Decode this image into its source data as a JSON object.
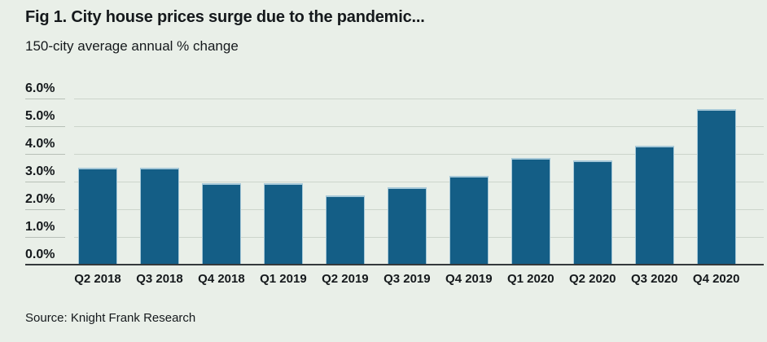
{
  "header": {
    "title": "Fig 1. City house prices surge due to the pandemic...",
    "subtitle": "150-city average annual % change"
  },
  "source_note": "Source: Knight Frank Research",
  "colors": {
    "background": "#e9efe8",
    "bar": "#145e86",
    "bar_edge": "#a6c8d8",
    "gridline": "#ccd4cb",
    "tick_underline": "#b7bfb7",
    "baseline": "#34393c",
    "text": "#15191c"
  },
  "chart_data": {
    "type": "bar",
    "title": "Fig 1. City house prices surge due to the pandemic...",
    "subtitle": "150-city average annual % change",
    "categories": [
      "Q2 2018",
      "Q3 2018",
      "Q4 2018",
      "Q1 2019",
      "Q2 2019",
      "Q3 2019",
      "Q4 2019",
      "Q1 2020",
      "Q2 2020",
      "Q3 2020",
      "Q4 2020"
    ],
    "values": [
      3.5,
      3.5,
      2.95,
      2.95,
      2.5,
      2.8,
      3.2,
      3.85,
      3.75,
      4.3,
      5.6
    ],
    "xlabel": "",
    "ylabel": "",
    "ylim": [
      0,
      6
    ],
    "yticks_top_to_bottom": [
      "6.0%",
      "5.0%",
      "4.0%",
      "3.0%",
      "2.0%",
      "1.0%",
      "0.0%"
    ],
    "grid": true,
    "legend": "none",
    "source": "Source: Knight Frank Research"
  }
}
